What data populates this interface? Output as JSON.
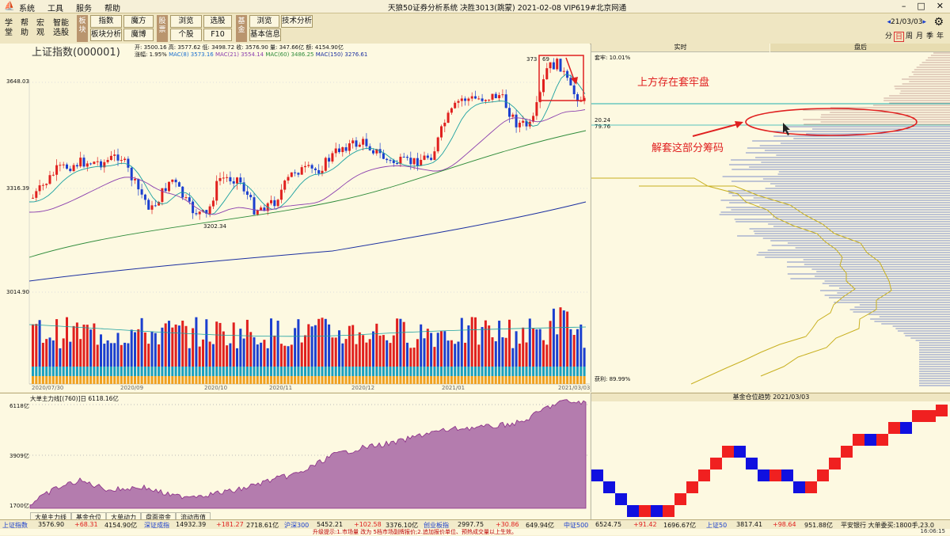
{
  "window": {
    "title": "天狼50证券分析系统  决胜3013(跳蒙)  2021-02-08  VIP619#北京网通",
    "menu": [
      "系统",
      "工具",
      "服务",
      "帮助"
    ]
  },
  "toolbar": {
    "left_buttons": [
      {
        "l1": "学",
        "l2": "堂"
      },
      {
        "l1": "帮",
        "l2": "助"
      },
      {
        "l1": "宏",
        "l2": "观"
      },
      {
        "l1": "智能",
        "l2": "选股"
      }
    ],
    "group1_label": "板块",
    "group1_buttons": [
      "指数",
      "魔方",
      "板块分析",
      "魔博"
    ],
    "group2_label": "股票",
    "group2_buttons": [
      "浏览",
      "选股",
      "个股",
      "F10"
    ],
    "group3_label": "基金",
    "group3_buttons": [
      "浏览",
      "技术分析",
      "基本信息"
    ],
    "date_nav": "21/03/03",
    "timeframes": [
      "分",
      "日",
      "周",
      "月",
      "季",
      "年"
    ]
  },
  "main_chart": {
    "title": "上证指数(000001)",
    "ohlc_line": "开: 3500.16  高: 3577.62  低: 3498.72  收: 3576.90  量: 347.66亿  额: 4154.90亿",
    "ma_prefix": "涨幅: 1.95%",
    "ma_labels": [
      {
        "text": "MAC(8) 3573.16",
        "color": "#1b6fd0"
      },
      {
        "text": "MAC(21) 3554.14",
        "color": "#8b3fae"
      },
      {
        "text": "MAC(60) 3486.25",
        "color": "#2e8b3a"
      },
      {
        "text": "MAC(150) 3276.61",
        "color": "#1b2fa0"
      }
    ],
    "y_ticks": [
      "3648.03",
      "3316.39",
      "3014.90"
    ],
    "x_dates": [
      "2020/07/30",
      "2020/09",
      "2020/10",
      "2020/11",
      "2020/12",
      "2021/01",
      "2021/03/03"
    ],
    "annotations": {
      "low_label": "3202.34",
      "high_label_a": "373",
      "high_label_b": "69",
      "callout_top": "上方存在套牢盘",
      "callout_mid": "解套这部分筹码"
    }
  },
  "chip_panel": {
    "tab_realtime": "实时",
    "tab_after": "盘后",
    "trapped_label": "套牢:  10.01%",
    "price_a": "20.24",
    "price_b": "79.76",
    "profit_label": "获利:  89.99%"
  },
  "indicator": {
    "title": "大单主力线[(760)]日  6118.16亿",
    "y_ticks": [
      "6118亿",
      "3909亿",
      "1700亿"
    ],
    "tabs": [
      "大单主力线",
      "基金仓位",
      "大单动力",
      "盘面资金",
      "流动市值"
    ]
  },
  "renko": {
    "title": "基金仓位趋势  2021/03/03",
    "colors": {
      "up": "#f02020",
      "down": "#1010e0"
    }
  },
  "status_bar": [
    {
      "name": "上证指数",
      "v1": "3576.90",
      "v2": "+68.31",
      "v3": "4154.90亿"
    },
    {
      "name": "深证成指",
      "v1": "14932.39",
      "v2": "+181.27",
      "v3": "2718.61亿"
    },
    {
      "name": "沪深300",
      "v1": "5452.21",
      "v2": "+102.58",
      "v3": "3376.10亿"
    },
    {
      "name": "创业板指",
      "v1": "2997.75",
      "v2": "+30.86",
      "v3": "649.94亿"
    },
    {
      "name": "中证500",
      "v1": "6524.75",
      "v2": "+91.42",
      "v3": "1696.67亿"
    },
    {
      "name": "上证50",
      "v1": "3817.41",
      "v2": "+98.64",
      "v3": "951.88亿"
    }
  ],
  "status_right": "平安银行  大单委买:1800手,23.0",
  "status_time": "16:06:15",
  "ticker": "升级提示:1.市场量 改为 5档市场副牌报价;2.追加报价单位、预热成交量以上生效。"
}
